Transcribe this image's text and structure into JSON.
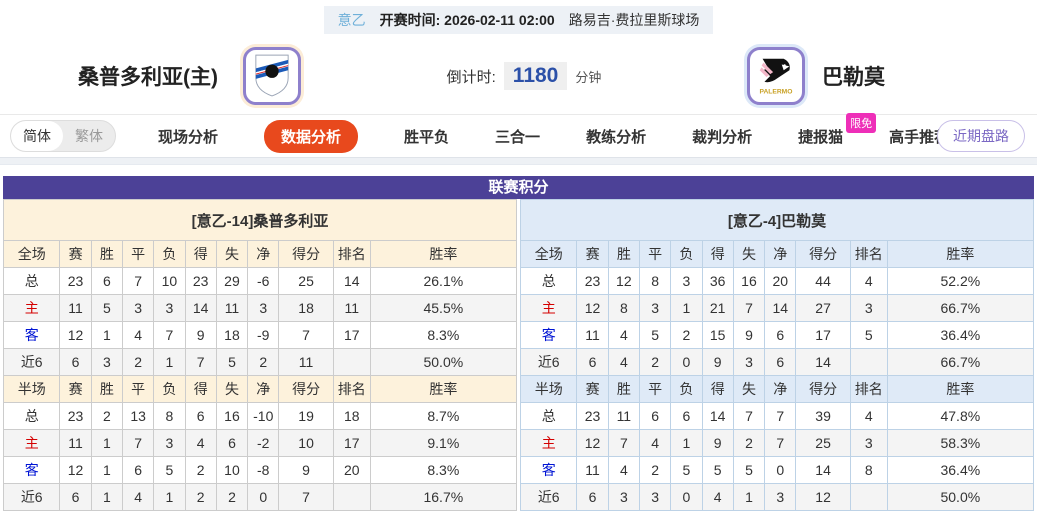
{
  "top_bar": {
    "league": "意乙",
    "kickoff_label": "开赛时间:",
    "kickoff_time": "2026-02-11 02:00",
    "venue": "路易吉·费拉里斯球场"
  },
  "match_header": {
    "home_team": "桑普多利亚(主)",
    "away_team": "巴勒莫",
    "away_logo_word": "PALERMO",
    "countdown_label": "倒计时:",
    "countdown_value": "1180",
    "countdown_unit": "分钟"
  },
  "nav": {
    "lang_simplified": "简体",
    "lang_traditional": "繁体",
    "tabs": [
      {
        "label": "现场分析",
        "active": false
      },
      {
        "label": "数据分析",
        "active": true
      },
      {
        "label": "胜平负",
        "active": false
      },
      {
        "label": "三合一",
        "active": false
      },
      {
        "label": "教练分析",
        "active": false
      },
      {
        "label": "裁判分析",
        "active": false
      },
      {
        "label": "捷报猫",
        "active": false,
        "badge": "限免"
      },
      {
        "label": "高手推荐",
        "active": false
      }
    ],
    "recent_button": "近期盘路"
  },
  "league_table": {
    "title": "联赛积分",
    "halves": [
      {
        "side": "home",
        "team_header": "[意乙-14]桑普多利亚",
        "sections": [
          {
            "header": [
              "全场",
              "赛",
              "胜",
              "平",
              "负",
              "得",
              "失",
              "净",
              "得分",
              "排名",
              "胜率"
            ],
            "rows": [
              {
                "label": "总",
                "values": [
                  "23",
                  "6",
                  "7",
                  "10",
                  "23",
                  "29",
                  "-6",
                  "25",
                  "14",
                  "26.1%"
                ]
              },
              {
                "label": "主",
                "values": [
                  "11",
                  "5",
                  "3",
                  "3",
                  "14",
                  "11",
                  "3",
                  "18",
                  "11",
                  "45.5%"
                ]
              },
              {
                "label": "客",
                "values": [
                  "12",
                  "1",
                  "4",
                  "7",
                  "9",
                  "18",
                  "-9",
                  "7",
                  "17",
                  "8.3%"
                ]
              },
              {
                "label": "近6",
                "values": [
                  "6",
                  "3",
                  "2",
                  "1",
                  "7",
                  "5",
                  "2",
                  "11",
                  "",
                  "50.0%"
                ]
              }
            ]
          },
          {
            "header": [
              "半场",
              "赛",
              "胜",
              "平",
              "负",
              "得",
              "失",
              "净",
              "得分",
              "排名",
              "胜率"
            ],
            "rows": [
              {
                "label": "总",
                "values": [
                  "23",
                  "2",
                  "13",
                  "8",
                  "6",
                  "16",
                  "-10",
                  "19",
                  "18",
                  "8.7%"
                ]
              },
              {
                "label": "主",
                "values": [
                  "11",
                  "1",
                  "7",
                  "3",
                  "4",
                  "6",
                  "-2",
                  "10",
                  "17",
                  "9.1%"
                ]
              },
              {
                "label": "客",
                "values": [
                  "12",
                  "1",
                  "6",
                  "5",
                  "2",
                  "10",
                  "-8",
                  "9",
                  "20",
                  "8.3%"
                ]
              },
              {
                "label": "近6",
                "values": [
                  "6",
                  "1",
                  "4",
                  "1",
                  "2",
                  "2",
                  "0",
                  "7",
                  "",
                  "16.7%"
                ]
              }
            ]
          }
        ]
      },
      {
        "side": "away",
        "team_header": "[意乙-4]巴勒莫",
        "sections": [
          {
            "header": [
              "全场",
              "赛",
              "胜",
              "平",
              "负",
              "得",
              "失",
              "净",
              "得分",
              "排名",
              "胜率"
            ],
            "rows": [
              {
                "label": "总",
                "values": [
                  "23",
                  "12",
                  "8",
                  "3",
                  "36",
                  "16",
                  "20",
                  "44",
                  "4",
                  "52.2%"
                ]
              },
              {
                "label": "主",
                "values": [
                  "12",
                  "8",
                  "3",
                  "1",
                  "21",
                  "7",
                  "14",
                  "27",
                  "3",
                  "66.7%"
                ]
              },
              {
                "label": "客",
                "values": [
                  "11",
                  "4",
                  "5",
                  "2",
                  "15",
                  "9",
                  "6",
                  "17",
                  "5",
                  "36.4%"
                ]
              },
              {
                "label": "近6",
                "values": [
                  "6",
                  "4",
                  "2",
                  "0",
                  "9",
                  "3",
                  "6",
                  "14",
                  "",
                  "66.7%"
                ]
              }
            ]
          },
          {
            "header": [
              "半场",
              "赛",
              "胜",
              "平",
              "负",
              "得",
              "失",
              "净",
              "得分",
              "排名",
              "胜率"
            ],
            "rows": [
              {
                "label": "总",
                "values": [
                  "23",
                  "11",
                  "6",
                  "6",
                  "14",
                  "7",
                  "7",
                  "39",
                  "4",
                  "47.8%"
                ]
              },
              {
                "label": "主",
                "values": [
                  "12",
                  "7",
                  "4",
                  "1",
                  "9",
                  "2",
                  "7",
                  "25",
                  "3",
                  "58.3%"
                ]
              },
              {
                "label": "客",
                "values": [
                  "11",
                  "4",
                  "2",
                  "5",
                  "5",
                  "5",
                  "0",
                  "14",
                  "8",
                  "36.4%"
                ]
              },
              {
                "label": "近6",
                "values": [
                  "6",
                  "3",
                  "3",
                  "0",
                  "4",
                  "1",
                  "3",
                  "12",
                  "",
                  "50.0%"
                ]
              }
            ]
          }
        ]
      }
    ]
  },
  "colors": {
    "accent_purple": "#4c4197",
    "active_tab": "#e8491d",
    "badge_pink": "#ee2fb8",
    "countdown_blue": "#2b50a8",
    "host_red": "#d40000",
    "guest_blue": "#0014d4"
  }
}
